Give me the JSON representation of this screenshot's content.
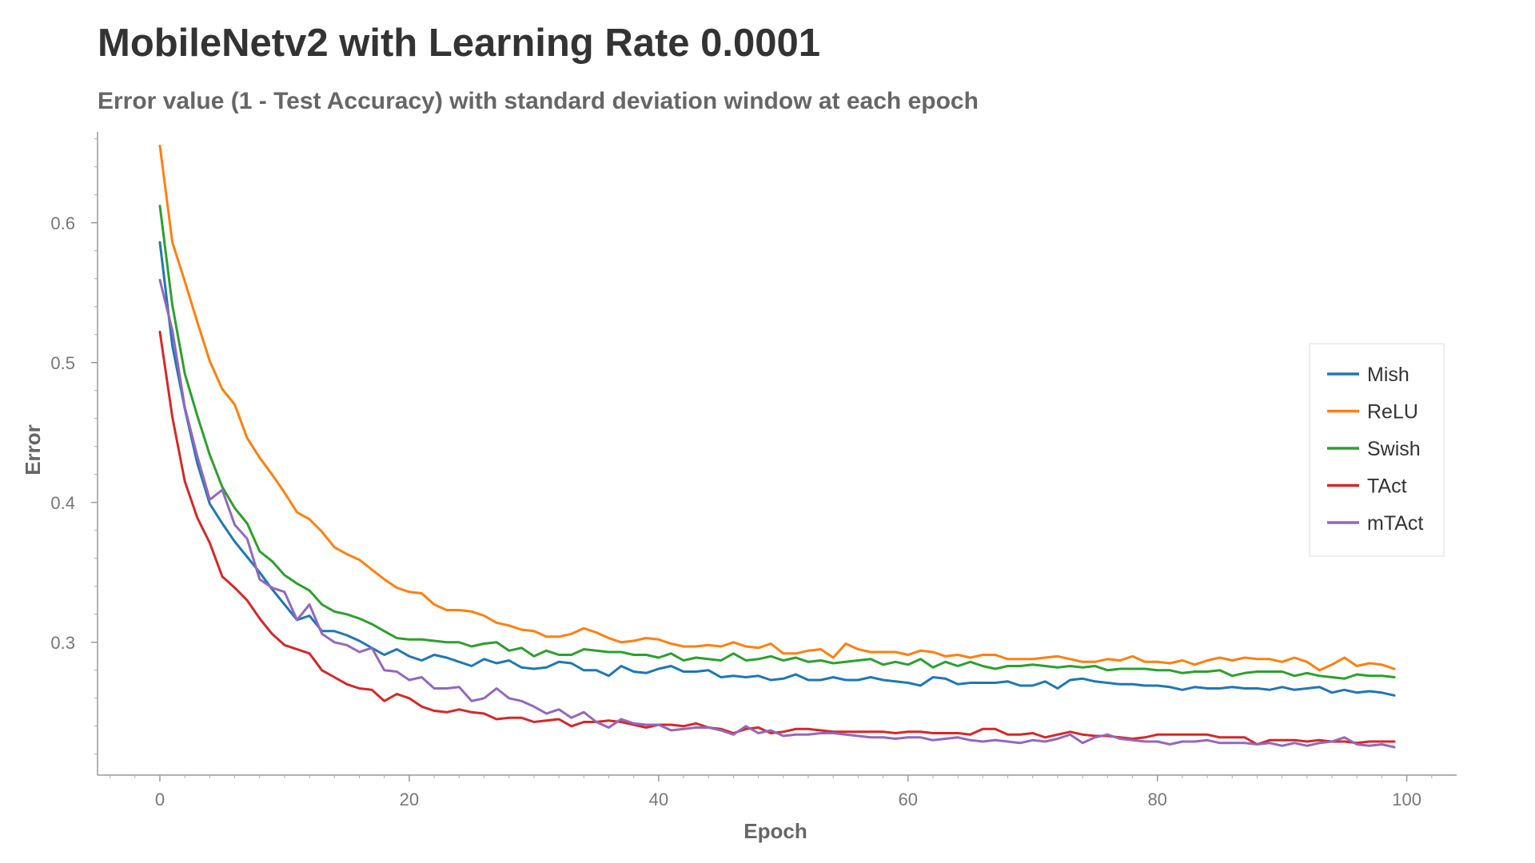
{
  "chart_data": {
    "type": "line",
    "title": "MobileNetv2 with Learning Rate 0.0001",
    "subtitle": "Error value (1 - Test Accuracy) with standard deviation window at each epoch",
    "xlabel": "Epoch",
    "ylabel": "Error",
    "xlim": [
      -5,
      104
    ],
    "ylim": [
      0.205,
      0.665
    ],
    "xticks": [
      0,
      20,
      40,
      60,
      80,
      100
    ],
    "yticks": [
      0.3,
      0.4,
      0.5,
      0.6
    ],
    "x_tick_labels": [
      "0",
      "20",
      "40",
      "60",
      "80",
      "100"
    ],
    "y_tick_labels": [
      "0.3",
      "0.4",
      "0.5",
      "0.6"
    ],
    "grid": false,
    "legend_position": "right",
    "x": [
      0,
      1,
      2,
      3,
      4,
      5,
      6,
      7,
      8,
      9,
      10,
      11,
      12,
      13,
      14,
      15,
      16,
      17,
      18,
      19,
      20,
      21,
      22,
      23,
      24,
      25,
      26,
      27,
      28,
      29,
      30,
      31,
      32,
      33,
      34,
      35,
      36,
      37,
      38,
      39,
      40,
      41,
      42,
      43,
      44,
      45,
      46,
      47,
      48,
      49,
      50,
      51,
      52,
      53,
      54,
      55,
      56,
      57,
      58,
      59,
      60,
      61,
      62,
      63,
      64,
      65,
      66,
      67,
      68,
      69,
      70,
      71,
      72,
      73,
      74,
      75,
      76,
      77,
      78,
      79,
      80,
      81,
      82,
      83,
      84,
      85,
      86,
      87,
      88,
      89,
      90,
      91,
      92,
      93,
      94,
      95,
      96,
      97,
      98,
      99
    ],
    "series": [
      {
        "name": "Mish",
        "color": "#1f77b4",
        "values": [
          0.586,
          0.512,
          0.467,
          0.428,
          0.399,
          0.385,
          0.372,
          0.361,
          0.35,
          0.338,
          0.327,
          0.316,
          0.319,
          0.308,
          0.308,
          0.305,
          0.301,
          0.296,
          0.291,
          0.295,
          0.29,
          0.287,
          0.291,
          0.289,
          0.286,
          0.283,
          0.288,
          0.285,
          0.287,
          0.282,
          0.281,
          0.282,
          0.286,
          0.285,
          0.28,
          0.28,
          0.276,
          0.283,
          0.279,
          0.278,
          0.281,
          0.283,
          0.279,
          0.279,
          0.28,
          0.275,
          0.276,
          0.275,
          0.276,
          0.273,
          0.274,
          0.277,
          0.273,
          0.273,
          0.275,
          0.273,
          0.273,
          0.275,
          0.273,
          0.272,
          0.271,
          0.269,
          0.275,
          0.274,
          0.27,
          0.271,
          0.271,
          0.271,
          0.272,
          0.269,
          0.269,
          0.272,
          0.267,
          0.273,
          0.274,
          0.272,
          0.271,
          0.27,
          0.27,
          0.269,
          0.269,
          0.268,
          0.266,
          0.268,
          0.267,
          0.267,
          0.268,
          0.267,
          0.267,
          0.266,
          0.268,
          0.266,
          0.267,
          0.268,
          0.264,
          0.266,
          0.264,
          0.265,
          0.264,
          0.262
        ]
      },
      {
        "name": "ReLU",
        "color": "#ff7f0e",
        "values": [
          0.655,
          0.586,
          0.558,
          0.529,
          0.501,
          0.481,
          0.47,
          0.446,
          0.432,
          0.42,
          0.407,
          0.393,
          0.388,
          0.379,
          0.368,
          0.363,
          0.359,
          0.352,
          0.345,
          0.339,
          0.336,
          0.335,
          0.327,
          0.323,
          0.323,
          0.322,
          0.319,
          0.314,
          0.312,
          0.309,
          0.308,
          0.304,
          0.304,
          0.306,
          0.31,
          0.307,
          0.303,
          0.3,
          0.301,
          0.303,
          0.302,
          0.299,
          0.297,
          0.297,
          0.298,
          0.297,
          0.3,
          0.297,
          0.296,
          0.299,
          0.292,
          0.292,
          0.294,
          0.295,
          0.289,
          0.299,
          0.295,
          0.293,
          0.293,
          0.293,
          0.291,
          0.294,
          0.293,
          0.29,
          0.291,
          0.289,
          0.291,
          0.291,
          0.288,
          0.288,
          0.288,
          0.289,
          0.29,
          0.288,
          0.286,
          0.286,
          0.288,
          0.287,
          0.29,
          0.286,
          0.286,
          0.285,
          0.287,
          0.284,
          0.287,
          0.289,
          0.287,
          0.289,
          0.288,
          0.288,
          0.286,
          0.289,
          0.286,
          0.28,
          0.284,
          0.289,
          0.283,
          0.285,
          0.284,
          0.281
        ]
      },
      {
        "name": "Swish",
        "color": "#2ca02c",
        "values": [
          0.612,
          0.541,
          0.492,
          0.462,
          0.434,
          0.411,
          0.396,
          0.385,
          0.365,
          0.358,
          0.348,
          0.342,
          0.337,
          0.327,
          0.322,
          0.32,
          0.317,
          0.313,
          0.308,
          0.303,
          0.302,
          0.302,
          0.301,
          0.3,
          0.3,
          0.297,
          0.299,
          0.3,
          0.294,
          0.296,
          0.29,
          0.294,
          0.291,
          0.291,
          0.295,
          0.294,
          0.293,
          0.293,
          0.291,
          0.291,
          0.289,
          0.292,
          0.287,
          0.289,
          0.288,
          0.287,
          0.292,
          0.287,
          0.288,
          0.29,
          0.287,
          0.289,
          0.286,
          0.287,
          0.285,
          0.286,
          0.287,
          0.288,
          0.284,
          0.286,
          0.284,
          0.288,
          0.282,
          0.286,
          0.283,
          0.286,
          0.283,
          0.281,
          0.283,
          0.283,
          0.284,
          0.283,
          0.282,
          0.283,
          0.282,
          0.283,
          0.28,
          0.281,
          0.281,
          0.281,
          0.28,
          0.28,
          0.278,
          0.279,
          0.279,
          0.28,
          0.276,
          0.278,
          0.279,
          0.279,
          0.279,
          0.276,
          0.278,
          0.276,
          0.275,
          0.274,
          0.277,
          0.276,
          0.276,
          0.275
        ]
      },
      {
        "name": "TAct",
        "color": "#d62728",
        "values": [
          0.522,
          0.461,
          0.415,
          0.389,
          0.371,
          0.347,
          0.339,
          0.33,
          0.317,
          0.306,
          0.298,
          0.295,
          0.292,
          0.28,
          0.275,
          0.27,
          0.267,
          0.266,
          0.258,
          0.263,
          0.26,
          0.254,
          0.251,
          0.25,
          0.252,
          0.25,
          0.249,
          0.245,
          0.246,
          0.246,
          0.243,
          0.244,
          0.245,
          0.24,
          0.243,
          0.243,
          0.244,
          0.243,
          0.241,
          0.239,
          0.241,
          0.241,
          0.24,
          0.242,
          0.239,
          0.238,
          0.235,
          0.238,
          0.239,
          0.235,
          0.236,
          0.238,
          0.238,
          0.237,
          0.236,
          0.236,
          0.236,
          0.236,
          0.236,
          0.235,
          0.236,
          0.236,
          0.235,
          0.235,
          0.235,
          0.234,
          0.238,
          0.238,
          0.234,
          0.234,
          0.235,
          0.232,
          0.234,
          0.236,
          0.234,
          0.233,
          0.233,
          0.232,
          0.231,
          0.232,
          0.234,
          0.234,
          0.234,
          0.234,
          0.234,
          0.232,
          0.232,
          0.232,
          0.227,
          0.23,
          0.23,
          0.23,
          0.229,
          0.23,
          0.229,
          0.229,
          0.228,
          0.229,
          0.229,
          0.229
        ]
      },
      {
        "name": "mTAct",
        "color": "#9467bd",
        "values": [
          0.559,
          0.523,
          0.468,
          0.433,
          0.402,
          0.409,
          0.384,
          0.374,
          0.345,
          0.339,
          0.336,
          0.316,
          0.327,
          0.306,
          0.3,
          0.298,
          0.293,
          0.296,
          0.28,
          0.279,
          0.273,
          0.275,
          0.267,
          0.267,
          0.268,
          0.258,
          0.26,
          0.267,
          0.26,
          0.258,
          0.254,
          0.249,
          0.252,
          0.246,
          0.25,
          0.243,
          0.239,
          0.245,
          0.242,
          0.241,
          0.241,
          0.237,
          0.238,
          0.239,
          0.239,
          0.237,
          0.234,
          0.24,
          0.235,
          0.237,
          0.233,
          0.234,
          0.234,
          0.235,
          0.235,
          0.234,
          0.233,
          0.232,
          0.232,
          0.231,
          0.232,
          0.232,
          0.23,
          0.231,
          0.232,
          0.23,
          0.229,
          0.23,
          0.229,
          0.228,
          0.23,
          0.229,
          0.231,
          0.234,
          0.228,
          0.232,
          0.234,
          0.231,
          0.23,
          0.229,
          0.229,
          0.227,
          0.229,
          0.229,
          0.23,
          0.228,
          0.228,
          0.228,
          0.227,
          0.228,
          0.226,
          0.228,
          0.226,
          0.228,
          0.229,
          0.232,
          0.227,
          0.226,
          0.227,
          0.225
        ]
      }
    ]
  }
}
